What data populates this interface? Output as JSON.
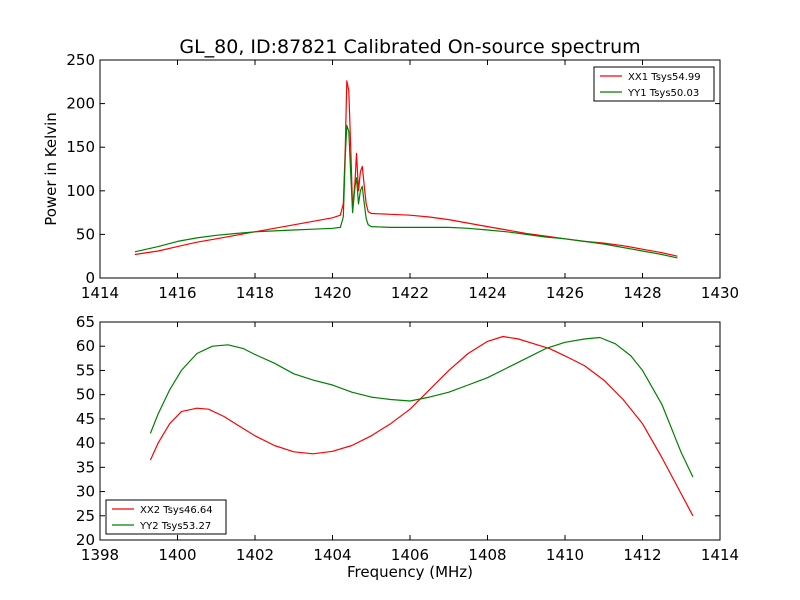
{
  "figure_title": "GL_80, ID:87821 Calibrated On-source spectrum",
  "chart_data": [
    {
      "type": "line",
      "title": "GL_80, ID:87821 Calibrated On-source spectrum",
      "xlabel": "",
      "ylabel": "Power in Kelvin",
      "xlim": [
        1414,
        1430
      ],
      "ylim": [
        0,
        250
      ],
      "xticks": [
        1414,
        1416,
        1418,
        1420,
        1422,
        1424,
        1426,
        1428,
        1430
      ],
      "yticks": [
        0,
        50,
        100,
        150,
        200,
        250
      ],
      "grid": false,
      "legend_position": "top-right",
      "series": [
        {
          "name": "XX1 Tsys54.99",
          "color": "#ff0000",
          "points": [
            [
              1414.9,
              27
            ],
            [
              1415.5,
              31
            ],
            [
              1416,
              36
            ],
            [
              1416.5,
              41
            ],
            [
              1417,
              45
            ],
            [
              1417.5,
              49
            ],
            [
              1418,
              53
            ],
            [
              1418.5,
              57
            ],
            [
              1419,
              61
            ],
            [
              1419.5,
              65
            ],
            [
              1420,
              69
            ],
            [
              1420.2,
              72
            ],
            [
              1420.28,
              85
            ],
            [
              1420.33,
              150
            ],
            [
              1420.37,
              226
            ],
            [
              1420.42,
              215
            ],
            [
              1420.47,
              150
            ],
            [
              1420.52,
              80
            ],
            [
              1420.58,
              110
            ],
            [
              1420.62,
              143
            ],
            [
              1420.67,
              100
            ],
            [
              1420.72,
              122
            ],
            [
              1420.77,
              128
            ],
            [
              1420.82,
              105
            ],
            [
              1420.87,
              85
            ],
            [
              1420.92,
              76
            ],
            [
              1421,
              74
            ],
            [
              1421.5,
              73
            ],
            [
              1422,
              72
            ],
            [
              1422.5,
              70
            ],
            [
              1423,
              67
            ],
            [
              1423.5,
              63
            ],
            [
              1424,
              59
            ],
            [
              1424.5,
              55
            ],
            [
              1425,
              51
            ],
            [
              1425.5,
              48
            ],
            [
              1426,
              45
            ],
            [
              1426.5,
              42
            ],
            [
              1427,
              40
            ],
            [
              1427.5,
              37
            ],
            [
              1428,
              33
            ],
            [
              1428.5,
              29
            ],
            [
              1428.9,
              25
            ]
          ]
        },
        {
          "name": "YY1 Tsys50.03",
          "color": "#008000",
          "points": [
            [
              1414.9,
              30
            ],
            [
              1415.5,
              36
            ],
            [
              1416,
              42
            ],
            [
              1416.5,
              46
            ],
            [
              1417,
              49
            ],
            [
              1417.5,
              51
            ],
            [
              1418,
              53
            ],
            [
              1418.5,
              54
            ],
            [
              1419,
              55
            ],
            [
              1419.5,
              56
            ],
            [
              1420,
              57
            ],
            [
              1420.2,
              58
            ],
            [
              1420.28,
              70
            ],
            [
              1420.33,
              140
            ],
            [
              1420.37,
              175
            ],
            [
              1420.42,
              168
            ],
            [
              1420.47,
              120
            ],
            [
              1420.52,
              75
            ],
            [
              1420.58,
              105
            ],
            [
              1420.62,
              115
            ],
            [
              1420.67,
              85
            ],
            [
              1420.72,
              100
            ],
            [
              1420.77,
              105
            ],
            [
              1420.82,
              85
            ],
            [
              1420.87,
              68
            ],
            [
              1420.92,
              61
            ],
            [
              1421,
              59
            ],
            [
              1421.5,
              58
            ],
            [
              1422,
              58
            ],
            [
              1422.5,
              58
            ],
            [
              1423,
              58
            ],
            [
              1423.5,
              57
            ],
            [
              1424,
              55
            ],
            [
              1424.5,
              53
            ],
            [
              1425,
              50
            ],
            [
              1425.5,
              47
            ],
            [
              1426,
              45
            ],
            [
              1426.5,
              42
            ],
            [
              1427,
              39
            ],
            [
              1427.5,
              35
            ],
            [
              1428,
              31
            ],
            [
              1428.5,
              27
            ],
            [
              1428.9,
              23
            ]
          ]
        }
      ]
    },
    {
      "type": "line",
      "title": "",
      "xlabel": "Frequency (MHz)",
      "ylabel": "",
      "xlim": [
        1398,
        1414
      ],
      "ylim": [
        20,
        65
      ],
      "xticks": [
        1398,
        1400,
        1402,
        1404,
        1406,
        1408,
        1410,
        1412,
        1414
      ],
      "yticks": [
        20,
        25,
        30,
        35,
        40,
        45,
        50,
        55,
        60,
        65
      ],
      "grid": false,
      "legend_position": "bottom-left",
      "series": [
        {
          "name": "XX2 Tsys46.64",
          "color": "#ff0000",
          "points": [
            [
              1399.3,
              36.5
            ],
            [
              1399.5,
              40
            ],
            [
              1399.8,
              44
            ],
            [
              1400.1,
              46.5
            ],
            [
              1400.5,
              47.2
            ],
            [
              1400.8,
              47
            ],
            [
              1401.2,
              45.5
            ],
            [
              1401.6,
              43.5
            ],
            [
              1402,
              41.5
            ],
            [
              1402.5,
              39.5
            ],
            [
              1403,
              38.2
            ],
            [
              1403.5,
              37.8
            ],
            [
              1404,
              38.3
            ],
            [
              1404.5,
              39.5
            ],
            [
              1405,
              41.5
            ],
            [
              1405.5,
              44
            ],
            [
              1406,
              47
            ],
            [
              1406.5,
              51
            ],
            [
              1407,
              55
            ],
            [
              1407.5,
              58.5
            ],
            [
              1408,
              61
            ],
            [
              1408.4,
              62
            ],
            [
              1408.8,
              61.5
            ],
            [
              1409.2,
              60.5
            ],
            [
              1409.6,
              59.5
            ],
            [
              1410,
              58
            ],
            [
              1410.5,
              56
            ],
            [
              1411,
              53
            ],
            [
              1411.5,
              49
            ],
            [
              1412,
              44
            ],
            [
              1412.5,
              37
            ],
            [
              1413,
              29.5
            ],
            [
              1413.3,
              25
            ]
          ]
        },
        {
          "name": "YY2 Tsys53.27",
          "color": "#008000",
          "points": [
            [
              1399.3,
              42
            ],
            [
              1399.5,
              46
            ],
            [
              1399.8,
              51
            ],
            [
              1400.1,
              55
            ],
            [
              1400.5,
              58.5
            ],
            [
              1400.9,
              60
            ],
            [
              1401.3,
              60.3
            ],
            [
              1401.7,
              59.5
            ],
            [
              1402,
              58.3
            ],
            [
              1402.5,
              56.5
            ],
            [
              1403,
              54.3
            ],
            [
              1403.5,
              53
            ],
            [
              1404,
              52
            ],
            [
              1404.5,
              50.5
            ],
            [
              1405,
              49.5
            ],
            [
              1405.5,
              49
            ],
            [
              1406,
              48.7
            ],
            [
              1406.5,
              49.5
            ],
            [
              1407,
              50.5
            ],
            [
              1407.5,
              52
            ],
            [
              1408,
              53.5
            ],
            [
              1408.5,
              55.5
            ],
            [
              1409,
              57.5
            ],
            [
              1409.5,
              59.5
            ],
            [
              1410,
              60.8
            ],
            [
              1410.5,
              61.5
            ],
            [
              1410.9,
              61.8
            ],
            [
              1411.3,
              60.5
            ],
            [
              1411.7,
              58
            ],
            [
              1412,
              55
            ],
            [
              1412.5,
              48
            ],
            [
              1413,
              38
            ],
            [
              1413.3,
              33
            ]
          ]
        }
      ]
    }
  ]
}
